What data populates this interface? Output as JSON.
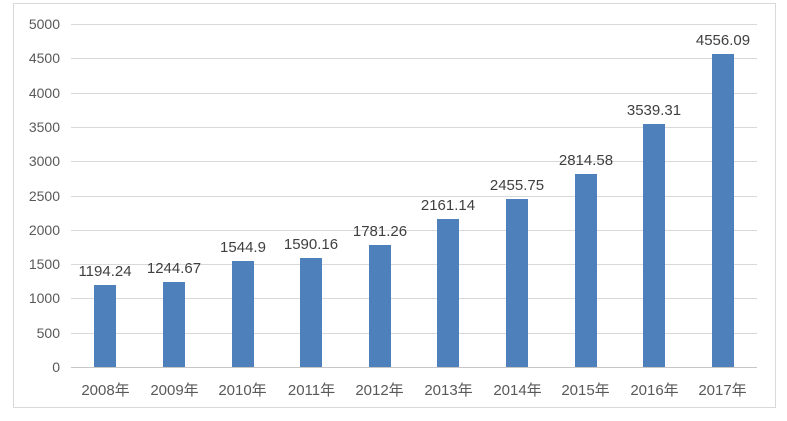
{
  "chart_data": {
    "type": "bar",
    "title": "",
    "xlabel": "",
    "ylabel": "",
    "categories": [
      "2008年",
      "2009年",
      "2010年",
      "2011年",
      "2012年",
      "2013年",
      "2014年",
      "2015年",
      "2016年",
      "2017年"
    ],
    "values": [
      1194.24,
      1244.67,
      1544.9,
      1590.16,
      1781.26,
      2161.14,
      2455.75,
      2814.58,
      3539.31,
      4556.09
    ],
    "value_labels": [
      "1194.24",
      "1244.67",
      "1544.9",
      "1590.16",
      "1781.26",
      "2161.14",
      "2455.75",
      "2814.58",
      "3539.31",
      "4556.09"
    ],
    "yticks": [
      "0",
      "500",
      "1000",
      "1500",
      "2000",
      "2500",
      "3000",
      "3500",
      "4000",
      "4500",
      "5000"
    ],
    "ylim": [
      0,
      5000
    ],
    "ytick_step": 500,
    "grid": true,
    "legend": "none",
    "colors": {
      "bar": "#4e80bc",
      "gridline": "#d9d9d9",
      "axis_line": "#c6c6c6",
      "chart_border": "#d9d9d9",
      "axis_label": "#595959",
      "data_label": "#404040",
      "background": "#ffffff"
    }
  }
}
